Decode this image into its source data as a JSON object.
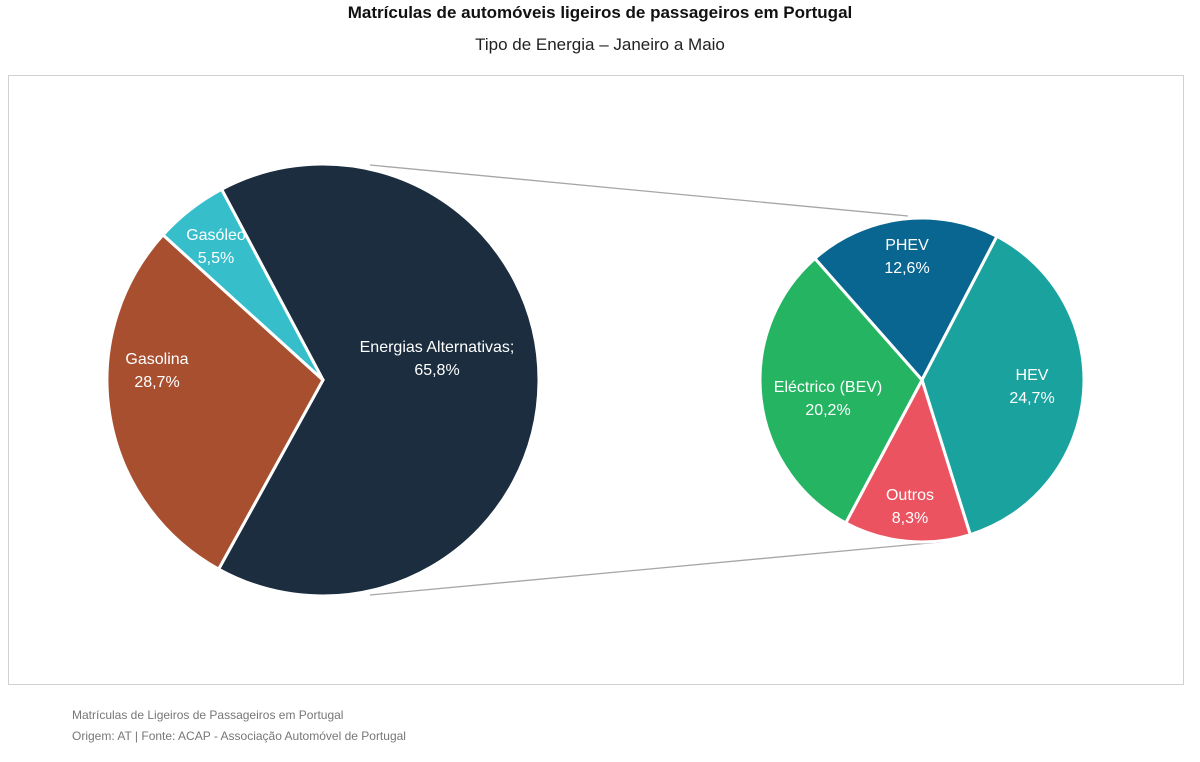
{
  "chart_data": {
    "type": "pie",
    "subtype": "pie-of-pie",
    "title": "Matrículas de automóveis ligeiros de passageiros em Portugal",
    "subtitle": "Tipo de Energia – Janeiro a Maio",
    "unit": "%",
    "main_pie": [
      {
        "label": "Energias Alternativas;",
        "value": 65.8,
        "display": "65,8%",
        "color": "#1b2d3e"
      },
      {
        "label": "Gasolina",
        "value": 28.7,
        "display": "28,7%",
        "color": "#a84f30"
      },
      {
        "label": "Gasóleo",
        "value": 5.5,
        "display": "5,5%",
        "color": "#36bfcb"
      }
    ],
    "secondary_pie": [
      {
        "label": "PHEV",
        "value": 12.6,
        "display": "12,6%",
        "color": "#086690"
      },
      {
        "label": "HEV",
        "value": 24.7,
        "display": "24,7%",
        "color": "#1aa39e"
      },
      {
        "label": "Outros",
        "value": 8.3,
        "display": "8,3%",
        "color": "#ec5361"
      },
      {
        "label": "Eléctrico (BEV)",
        "value": 20.2,
        "display": "20,2%",
        "color": "#25b462"
      }
    ],
    "connector_color": "#a6a6a6"
  },
  "footer": {
    "line1": "Matrículas de Ligeiros de Passageiros em Portugal",
    "line2": "Origem: AT | Fonte: ACAP - Associação Automóvel de Portugal"
  }
}
